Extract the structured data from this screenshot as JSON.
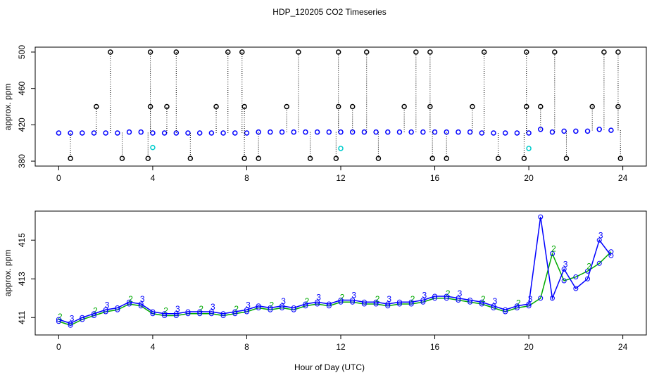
{
  "chart_data": [
    {
      "type": "scatter",
      "title": "HDP_120205  CO2 Timeseries",
      "ylabel": "approx. ppm",
      "xlim": [
        -1,
        25
      ],
      "xticks": [
        0,
        4,
        8,
        12,
        16,
        20,
        24
      ],
      "ylim": [
        374.6,
        505.4
      ],
      "yticks": [
        380,
        420,
        460,
        500
      ],
      "series": [
        {
          "color": "#0000ff",
          "x": [
            0,
            0.5,
            1,
            1.5,
            2,
            2.5,
            3,
            3.5,
            4,
            4.5,
            5,
            5.5,
            6,
            6.5,
            7,
            7.5,
            8,
            8.5,
            9,
            9.5,
            10,
            10.5,
            11,
            11.5,
            12,
            12.5,
            13,
            13.5,
            14,
            14.5,
            15,
            15.5,
            16,
            16.5,
            17,
            17.5,
            18,
            18.5,
            19,
            19.5,
            20,
            20.5,
            21,
            21.5,
            22,
            22.5,
            23,
            23.5
          ],
          "values": [
            411,
            411,
            411,
            411,
            411,
            411,
            412,
            412,
            411,
            411,
            411,
            411,
            411,
            411,
            411,
            411,
            411,
            412,
            412,
            412,
            412,
            412,
            412,
            412,
            412,
            412,
            412,
            412,
            412,
            412,
            412,
            412,
            412,
            412,
            412,
            412,
            411,
            411,
            411,
            411,
            411,
            415,
            412,
            413,
            413,
            413,
            415,
            414
          ]
        },
        {
          "color": "#000000",
          "drop": true,
          "x": [
            0.5,
            1.6,
            2.2,
            2.7,
            3.8,
            3.9,
            3.9,
            4.6,
            5.0,
            5.6,
            6.7,
            7.2,
            7.8,
            7.9,
            7.9,
            8.5,
            9.7,
            10.2,
            10.7,
            11.8,
            11.9,
            11.9,
            12.5,
            13.1,
            13.6,
            14.7,
            15.2,
            15.8,
            15.8,
            15.9,
            16.5,
            17.6,
            18.1,
            18.7,
            19.8,
            19.9,
            19.9,
            20.5,
            21.1,
            21.6,
            22.7,
            23.2,
            23.8,
            23.8,
            23.9
          ],
          "values": [
            383,
            440,
            500,
            383,
            383,
            440,
            500,
            440,
            500,
            383,
            440,
            500,
            500,
            440,
            383,
            383,
            440,
            500,
            383,
            383,
            440,
            500,
            440,
            500,
            383,
            440,
            500,
            500,
            440,
            383,
            383,
            440,
            500,
            383,
            383,
            440,
            500,
            440,
            500,
            383,
            440,
            500,
            500,
            440,
            383
          ]
        },
        {
          "color": "#00cccc",
          "x": [
            4.0,
            12.0,
            20.0
          ],
          "values": [
            395,
            394,
            394
          ]
        }
      ]
    },
    {
      "type": "line",
      "ylabel": "approx. ppm",
      "xlabel": "Hour of Day (UTC)",
      "xlim": [
        -1,
        25
      ],
      "xticks": [
        0,
        4,
        8,
        12,
        16,
        20,
        24
      ],
      "ylim": [
        410.1,
        416.5
      ],
      "yticks": [
        411,
        413,
        415
      ],
      "x": [
        0,
        0.5,
        1,
        1.5,
        2,
        2.5,
        3,
        3.5,
        4,
        4.5,
        5,
        5.5,
        6,
        6.5,
        7,
        7.5,
        8,
        8.5,
        9,
        9.5,
        10,
        10.5,
        11,
        11.5,
        12,
        12.5,
        13,
        13.5,
        14,
        14.5,
        15,
        15.5,
        16,
        16.5,
        17,
        17.5,
        18,
        18.5,
        19,
        19.5,
        20,
        20.5,
        21,
        21.5,
        22,
        22.5,
        23,
        23.5
      ],
      "series": [
        {
          "name": "2",
          "color": "#00aa00",
          "values": [
            410.8,
            410.6,
            410.9,
            411.1,
            411.3,
            411.4,
            411.7,
            411.6,
            411.2,
            411.1,
            411.1,
            411.2,
            411.2,
            411.2,
            411.1,
            411.2,
            411.3,
            411.5,
            411.4,
            411.5,
            411.4,
            411.6,
            411.7,
            411.6,
            411.8,
            411.8,
            411.7,
            411.7,
            411.6,
            411.7,
            411.7,
            411.8,
            412.0,
            412.0,
            411.9,
            411.8,
            411.7,
            411.5,
            411.3,
            411.5,
            411.6,
            412.0,
            414.3,
            412.9,
            413.1,
            413.4,
            413.8,
            414.4
          ]
        },
        {
          "name": "3",
          "color": "#0000ff",
          "values": [
            410.9,
            410.7,
            411.0,
            411.2,
            411.4,
            411.5,
            411.8,
            411.7,
            411.3,
            411.2,
            411.2,
            411.3,
            411.3,
            411.3,
            411.2,
            411.3,
            411.4,
            411.6,
            411.5,
            411.6,
            411.5,
            411.7,
            411.8,
            411.7,
            411.9,
            411.9,
            411.8,
            411.8,
            411.7,
            411.8,
            411.8,
            411.9,
            412.1,
            412.1,
            412.0,
            411.9,
            411.8,
            411.6,
            411.4,
            411.6,
            411.7,
            416.2,
            412.0,
            413.5,
            412.5,
            413.0,
            415.0,
            414.2
          ]
        }
      ]
    }
  ]
}
